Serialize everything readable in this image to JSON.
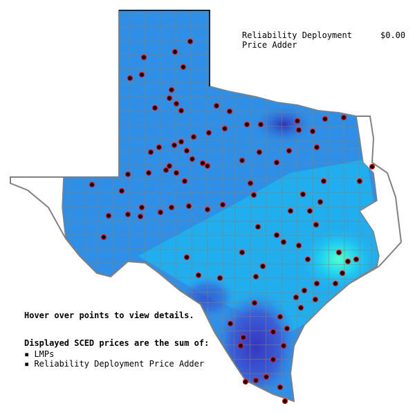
{
  "adder": {
    "label_line1": "Reliability Deployment",
    "label_line2": "Price Adder",
    "value": "$0.00"
  },
  "notes": {
    "hover_hint": "Hover over points to view details.",
    "sum_heading": "Displayed SCED prices are the sum of:",
    "items": [
      "▪ LMPs",
      "▪ Reliability Deployment Price Adder"
    ]
  },
  "colors": {
    "base_blue": "#2f8fe6",
    "light_blue": "#1eb4f0",
    "dark_blue": "#3a3fc8",
    "cyan": "#3ff0d8",
    "county_line": "#8a7f70",
    "state_border": "#808080",
    "point_fill": "#000000",
    "point_ring": "#ff0000"
  }
}
